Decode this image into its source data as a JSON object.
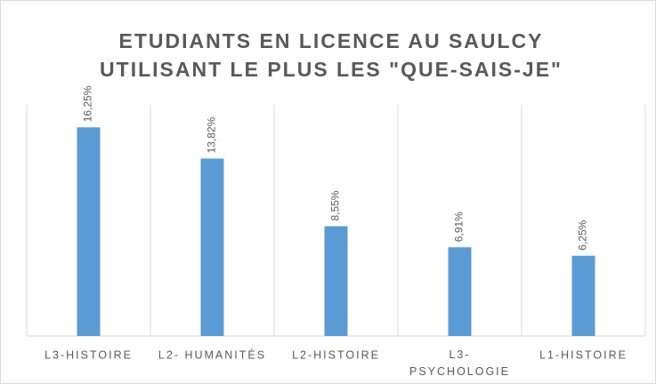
{
  "chart_data": {
    "type": "bar",
    "title": [
      "ETUDIANTS EN LICENCE AU SAULCY",
      "UTILISANT LE PLUS LES \"QUE-SAIS-JE\""
    ],
    "categories": [
      "L3-HISTOIRE",
      "L2- HUMANITÉS",
      "L2-HISTOIRE",
      "L3-PSYCHOLOGIE",
      "L1-HISTOIRE"
    ],
    "values": [
      16.25,
      13.82,
      8.55,
      6.91,
      6.25
    ],
    "value_labels": [
      "16,25%",
      "13,82%",
      "8,55%",
      "6,91%",
      "6,25%"
    ],
    "color": "#5b9bd5",
    "ylim": [
      0,
      18
    ]
  }
}
